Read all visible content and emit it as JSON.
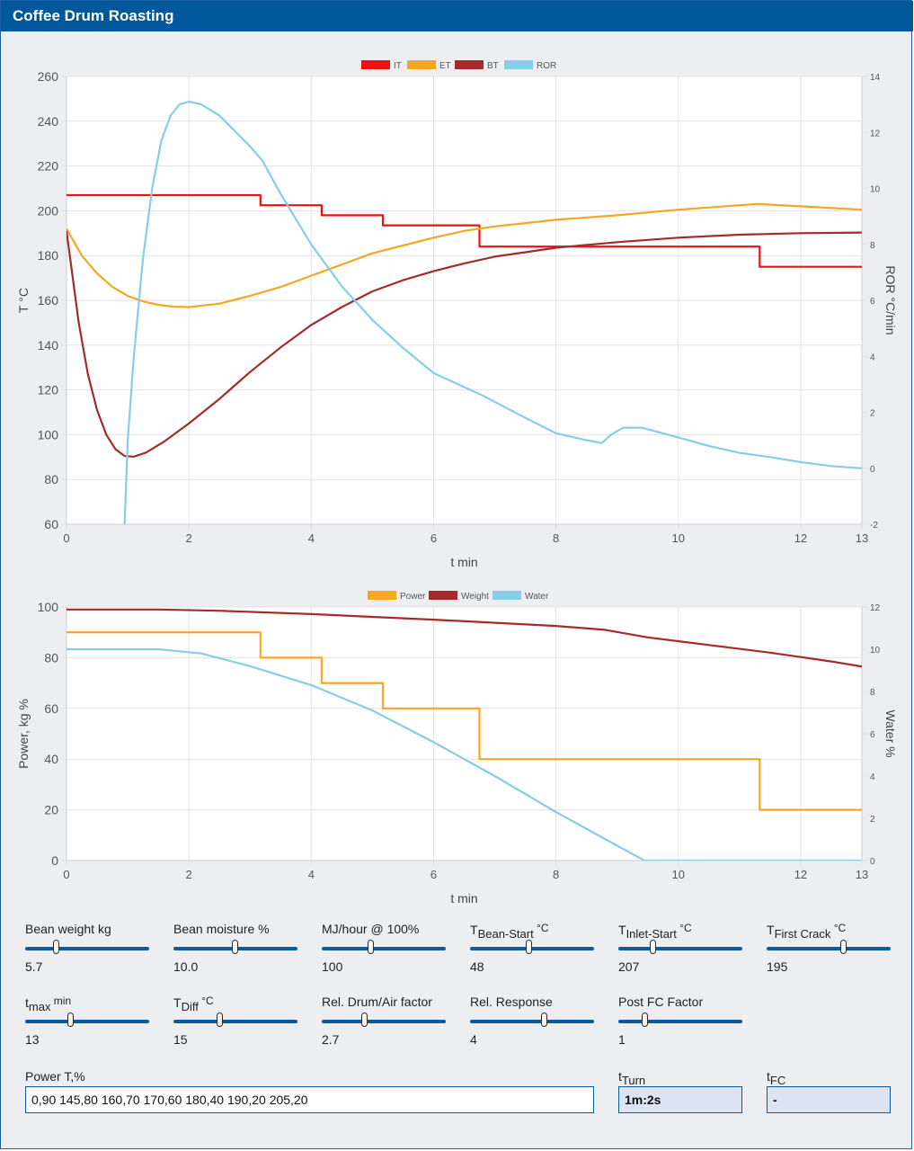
{
  "app": {
    "title": "Coffee Drum Roasting"
  },
  "chart_data": [
    {
      "type": "line",
      "legend": [
        "IT",
        "ET",
        "BT",
        "ROR"
      ],
      "legend_position": "top-center",
      "xlabel": "t min",
      "ylabel": "T °C",
      "y2label": "ROR °C/min",
      "xlim": [
        0,
        13
      ],
      "ylim": [
        60,
        260
      ],
      "y2lim": [
        -2,
        14
      ],
      "x_ticks": [
        0,
        2,
        4,
        6,
        8,
        10,
        12,
        13
      ],
      "y_ticks": [
        60,
        80,
        100,
        120,
        140,
        160,
        180,
        200,
        220,
        240,
        260
      ],
      "y2_ticks": [
        -2,
        0,
        2,
        4,
        6,
        8,
        10,
        12,
        14
      ],
      "grid": true,
      "series": [
        {
          "name": "IT",
          "axis": "left",
          "color": "#ee1111",
          "step": true,
          "points": [
            [
              0,
              207
            ],
            [
              3.17,
              207
            ],
            [
              3.17,
              202.5
            ],
            [
              4.17,
              202.5
            ],
            [
              4.17,
              198
            ],
            [
              5.17,
              198
            ],
            [
              5.17,
              193.5
            ],
            [
              6.75,
              193.5
            ],
            [
              6.75,
              184
            ],
            [
              11.33,
              184
            ],
            [
              11.33,
              175
            ],
            [
              13,
              175
            ]
          ]
        },
        {
          "name": "ET",
          "axis": "left",
          "color": "#f5a623",
          "points": [
            [
              0,
              192
            ],
            [
              0.25,
              180
            ],
            [
              0.5,
              172
            ],
            [
              0.75,
              166
            ],
            [
              1,
              162
            ],
            [
              1.25,
              159.5
            ],
            [
              1.5,
              158
            ],
            [
              1.75,
              157.2
            ],
            [
              2,
              157
            ],
            [
              2.5,
              158.5
            ],
            [
              3,
              162
            ],
            [
              3.5,
              166
            ],
            [
              4,
              171
            ],
            [
              4.5,
              176
            ],
            [
              5,
              181
            ],
            [
              5.5,
              184.5
            ],
            [
              6,
              188
            ],
            [
              6.5,
              191
            ],
            [
              7,
              193
            ],
            [
              7.5,
              194.5
            ],
            [
              8,
              196
            ],
            [
              9,
              198
            ],
            [
              10,
              200.5
            ],
            [
              11,
              202.5
            ],
            [
              11.3,
              203
            ],
            [
              12,
              202
            ],
            [
              13,
              200.5
            ]
          ]
        },
        {
          "name": "BT",
          "axis": "left",
          "color": "#a52a2a",
          "points": [
            [
              0,
              191
            ],
            [
              0.2,
              150
            ],
            [
              0.35,
              127
            ],
            [
              0.5,
              111
            ],
            [
              0.65,
              100
            ],
            [
              0.8,
              93.5
            ],
            [
              0.95,
              90.5
            ],
            [
              1.1,
              90.2
            ],
            [
              1.3,
              92
            ],
            [
              1.6,
              97
            ],
            [
              2,
              105
            ],
            [
              2.5,
              116
            ],
            [
              3,
              128
            ],
            [
              3.5,
              139
            ],
            [
              4,
              149
            ],
            [
              4.5,
              157
            ],
            [
              5,
              164
            ],
            [
              5.5,
              169
            ],
            [
              6,
              173
            ],
            [
              6.5,
              176.5
            ],
            [
              7,
              179.5
            ],
            [
              7.5,
              181.5
            ],
            [
              8,
              183.5
            ],
            [
              9,
              186
            ],
            [
              10,
              188
            ],
            [
              11,
              189.3
            ],
            [
              12,
              190
            ],
            [
              13,
              190.3
            ]
          ]
        },
        {
          "name": "ROR",
          "axis": "right",
          "color": "#86cde9",
          "points": [
            [
              0.95,
              -2
            ],
            [
              1,
              1
            ],
            [
              1.1,
              4
            ],
            [
              1.25,
              7.5
            ],
            [
              1.4,
              10
            ],
            [
              1.55,
              11.7
            ],
            [
              1.7,
              12.6
            ],
            [
              1.85,
              13.0
            ],
            [
              2,
              13.1
            ],
            [
              2.2,
              13.0
            ],
            [
              2.5,
              12.6
            ],
            [
              3,
              11.5
            ],
            [
              3.2,
              11
            ],
            [
              3.5,
              9.8
            ],
            [
              4,
              8
            ],
            [
              4.5,
              6.5
            ],
            [
              5,
              5.3
            ],
            [
              5.5,
              4.3
            ],
            [
              6,
              3.4
            ],
            [
              6.5,
              2.9
            ],
            [
              6.8,
              2.6
            ],
            [
              7.5,
              1.8
            ],
            [
              8,
              1.25
            ],
            [
              8.5,
              1.0
            ],
            [
              8.75,
              0.9
            ],
            [
              8.9,
              1.2
            ],
            [
              9.1,
              1.45
            ],
            [
              9.4,
              1.45
            ],
            [
              10,
              1.1
            ],
            [
              10.5,
              0.8
            ],
            [
              11,
              0.55
            ],
            [
              11.5,
              0.4
            ],
            [
              12,
              0.22
            ],
            [
              12.5,
              0.08
            ],
            [
              13,
              0
            ]
          ]
        }
      ]
    },
    {
      "type": "line",
      "legend": [
        "Power",
        "Weight",
        "Water"
      ],
      "legend_position": "top-center",
      "xlabel": "t min",
      "ylabel": "Power, kg %",
      "y2label": "Water %",
      "xlim": [
        0,
        13
      ],
      "ylim": [
        0,
        100
      ],
      "y2lim": [
        0,
        12
      ],
      "x_ticks": [
        0,
        2,
        4,
        6,
        8,
        10,
        12,
        13
      ],
      "y_ticks": [
        0,
        20,
        40,
        60,
        80,
        100
      ],
      "y2_ticks": [
        0,
        2,
        4,
        6,
        8,
        10,
        12
      ],
      "grid": true,
      "series": [
        {
          "name": "Power",
          "axis": "left",
          "color": "#f5a623",
          "step": true,
          "points": [
            [
              0,
              90
            ],
            [
              3.17,
              90
            ],
            [
              3.17,
              80
            ],
            [
              4.17,
              80
            ],
            [
              4.17,
              70
            ],
            [
              5.17,
              70
            ],
            [
              5.17,
              60
            ],
            [
              6.75,
              60
            ],
            [
              6.75,
              40
            ],
            [
              11.33,
              40
            ],
            [
              11.33,
              20
            ],
            [
              13,
              20
            ]
          ]
        },
        {
          "name": "Weight",
          "axis": "left",
          "color": "#a52a2a",
          "points": [
            [
              0,
              99
            ],
            [
              1.5,
              99
            ],
            [
              2.5,
              98.5
            ],
            [
              4,
              97.2
            ],
            [
              6,
              95
            ],
            [
              8,
              92.5
            ],
            [
              8.8,
              91
            ],
            [
              9.5,
              88
            ],
            [
              10.5,
              85
            ],
            [
              11.5,
              82
            ],
            [
              12.5,
              78.5
            ],
            [
              13,
              76.5
            ]
          ]
        },
        {
          "name": "Water",
          "axis": "right",
          "color": "#86cde9",
          "points": [
            [
              0,
              10
            ],
            [
              1.5,
              10
            ],
            [
              2.2,
              9.8
            ],
            [
              3,
              9.2
            ],
            [
              4,
              8.3
            ],
            [
              5,
              7.1
            ],
            [
              6,
              5.6
            ],
            [
              7,
              4
            ],
            [
              8,
              2.3
            ],
            [
              9,
              0.7
            ],
            [
              9.45,
              0
            ],
            [
              13,
              0
            ]
          ]
        }
      ]
    }
  ],
  "controls": {
    "bean_weight": {
      "label": "Bean weight kg",
      "value": "5.7",
      "fraction": 0.25
    },
    "bean_moisture": {
      "label": "Bean moisture %",
      "value": "10.0",
      "fraction": 0.5
    },
    "mj_hour": {
      "label": "MJ/hour @ 100%",
      "value": "100",
      "fraction": 0.4
    },
    "t_bean_start": {
      "label_main": "T",
      "label_sub": "Bean-Start",
      "label_unit": " °C",
      "value": "48",
      "fraction": 0.48
    },
    "t_inlet_start": {
      "label_main": "T",
      "label_sub": "Inlet-Start",
      "label_unit": " °C",
      "value": "207",
      "fraction": 0.28
    },
    "t_first_crack": {
      "label_main": "T",
      "label_sub": "First Crack",
      "label_unit": " °C",
      "value": "195",
      "fraction": 0.62
    },
    "t_max": {
      "label_main": "t",
      "label_sub": "max",
      "label_unit": " min",
      "value": "13",
      "fraction": 0.37
    },
    "t_diff": {
      "label_main": "T",
      "label_sub": "Diff",
      "label_unit": " °C",
      "value": "15",
      "fraction": 0.38
    },
    "rel_drum_air": {
      "label": "Rel. Drum/Air factor",
      "value": "2.7",
      "fraction": 0.35
    },
    "rel_response": {
      "label": "Rel. Response",
      "value": "4",
      "fraction": 0.6
    },
    "post_fc": {
      "label": "Post FC Factor",
      "value": "1",
      "fraction": 0.22
    }
  },
  "power_table": {
    "label": "Power T,%",
    "value": "0,90 145,80 160,70 170,60 180,40 190,20 205,20"
  },
  "t_turn": {
    "label_main": "t",
    "label_sub": "Turn",
    "value": "1m:2s"
  },
  "t_fc": {
    "label_main": "t",
    "label_sub": "FC",
    "value": "-"
  }
}
